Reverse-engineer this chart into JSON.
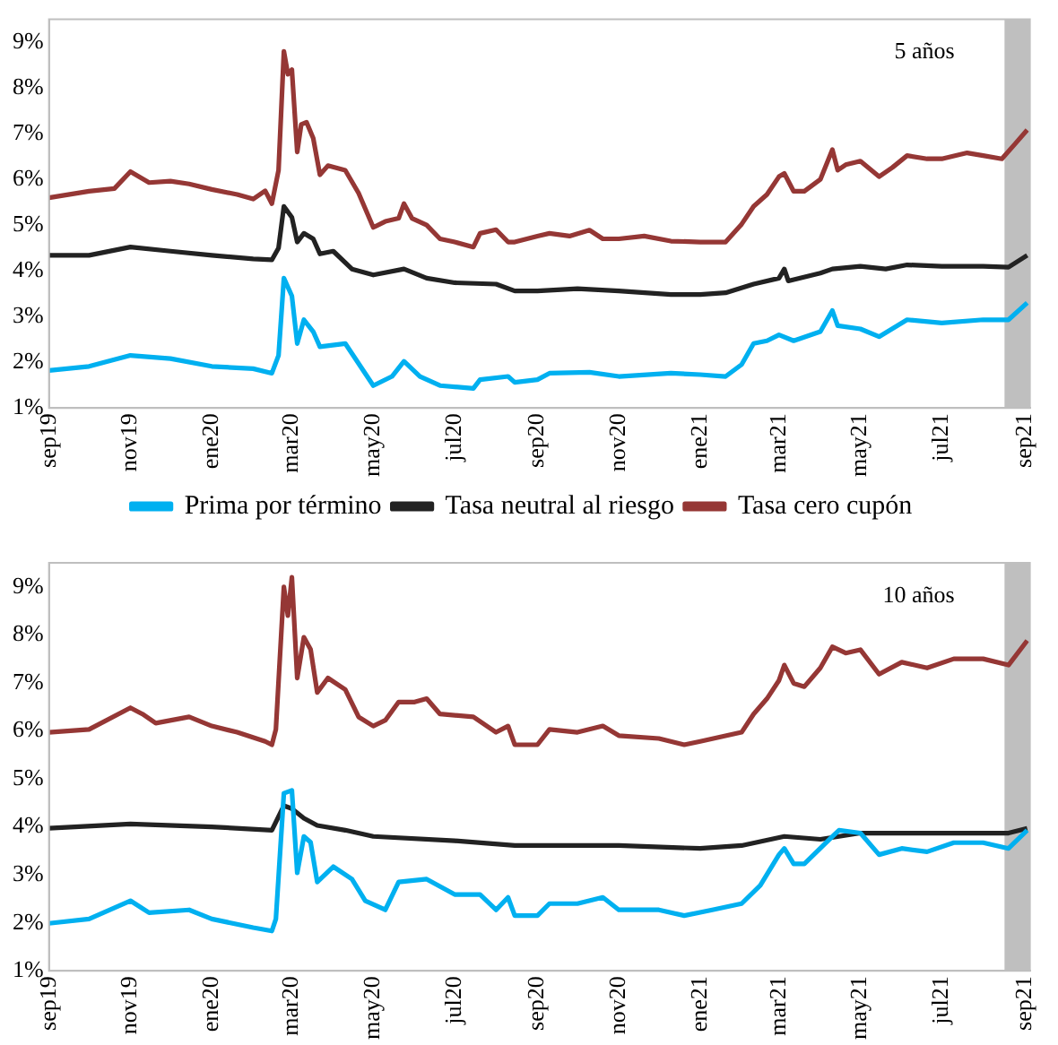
{
  "chart_data": [
    {
      "type": "line",
      "annotations": [
        "5 años"
      ],
      "legend": "bottom",
      "grid": false,
      "marker": "none",
      "line_style": "solid",
      "xlim": [
        "2019-09-01",
        "2021-09-05"
      ],
      "ylim": [
        1,
        9.5
      ],
      "yticks": [
        {
          "value": 1,
          "label": "1%"
        },
        {
          "value": 2,
          "label": "2%"
        },
        {
          "value": 3,
          "label": "3%"
        },
        {
          "value": 4,
          "label": "4%"
        },
        {
          "value": 5,
          "label": "5%"
        },
        {
          "value": 6,
          "label": "6%"
        },
        {
          "value": 7,
          "label": "7%"
        },
        {
          "value": 8,
          "label": "8%"
        },
        {
          "value": 9,
          "label": "9%"
        }
      ],
      "xticks": [
        {
          "value": "2019-09",
          "label": "sep19"
        },
        {
          "value": "2019-11",
          "label": "nov19"
        },
        {
          "value": "2020-01",
          "label": "ene20"
        },
        {
          "value": "2020-03",
          "label": "mar20"
        },
        {
          "value": "2020-05",
          "label": "may20"
        },
        {
          "value": "2020-07",
          "label": "jul20"
        },
        {
          "value": "2020-09",
          "label": "sep20"
        },
        {
          "value": "2020-11",
          "label": "nov20"
        },
        {
          "value": "2021-01",
          "label": "ene21"
        },
        {
          "value": "2021-03",
          "label": "mar21"
        },
        {
          "value": "2021-05",
          "label": "may21"
        },
        {
          "value": "2021-07",
          "label": "jul21"
        },
        {
          "value": "2021-09",
          "label": "sep21"
        }
      ],
      "bands": [
        {
          "axis": "x",
          "from": "2021-08-17",
          "to": "2021-09-05",
          "color": "#bfbfbf"
        }
      ],
      "series": [
        {
          "name": "Prima por término",
          "color": "#00b0f0",
          "x": [
            "2019-09-01",
            "2019-10-01",
            "2019-11-01",
            "2019-12-01",
            "2020-01-01",
            "2020-02-01",
            "2020-02-15",
            "2020-02-20",
            "2020-02-24",
            "2020-03-01",
            "2020-03-05",
            "2020-03-10",
            "2020-03-17",
            "2020-03-22",
            "2020-04-10",
            "2020-05-01",
            "2020-05-15",
            "2020-05-24",
            "2020-06-05",
            "2020-06-20",
            "2020-07-15",
            "2020-07-20",
            "2020-08-10",
            "2020-08-15",
            "2020-09-01",
            "2020-09-10",
            "2020-10-10",
            "2020-11-01",
            "2020-12-10",
            "2021-01-01",
            "2021-01-20",
            "2021-02-01",
            "2021-02-10",
            "2021-02-20",
            "2021-03-01",
            "2021-03-12",
            "2021-04-01",
            "2021-04-10",
            "2021-04-14",
            "2021-05-01",
            "2021-05-15",
            "2021-06-05",
            "2021-07-01",
            "2021-08-01",
            "2021-08-20",
            "2021-09-03"
          ],
          "values": [
            1.82,
            1.91,
            2.15,
            2.08,
            1.91,
            1.86,
            1.76,
            2.15,
            3.84,
            3.45,
            2.41,
            2.93,
            2.67,
            2.34,
            2.41,
            1.49,
            1.69,
            2.02,
            1.69,
            1.49,
            1.43,
            1.62,
            1.69,
            1.56,
            1.62,
            1.76,
            1.78,
            1.69,
            1.76,
            1.73,
            1.69,
            1.95,
            2.41,
            2.47,
            2.6,
            2.47,
            2.67,
            3.13,
            2.8,
            2.73,
            2.56,
            2.93,
            2.86,
            2.93,
            2.93,
            3.3
          ]
        },
        {
          "name": "Tasa neutral al riesgo",
          "color": "#222222",
          "x": [
            "2019-09-01",
            "2019-10-01",
            "2019-11-01",
            "2019-12-01",
            "2020-01-01",
            "2020-02-01",
            "2020-02-15",
            "2020-02-20",
            "2020-02-24",
            "2020-03-01",
            "2020-03-05",
            "2020-03-10",
            "2020-03-17",
            "2020-03-22",
            "2020-04-01",
            "2020-04-15",
            "2020-05-01",
            "2020-05-24",
            "2020-06-10",
            "2020-07-01",
            "2020-08-01",
            "2020-08-15",
            "2020-09-01",
            "2020-10-01",
            "2020-11-01",
            "2020-12-10",
            "2021-01-01",
            "2021-01-20",
            "2021-02-10",
            "2021-03-01",
            "2021-03-05",
            "2021-03-08",
            "2021-04-01",
            "2021-04-10",
            "2021-05-01",
            "2021-05-20",
            "2021-06-05",
            "2021-07-01",
            "2021-08-01",
            "2021-08-20",
            "2021-09-03"
          ],
          "values": [
            4.34,
            4.34,
            4.52,
            4.43,
            4.34,
            4.26,
            4.24,
            4.5,
            5.41,
            5.17,
            4.63,
            4.82,
            4.7,
            4.37,
            4.43,
            4.04,
            3.91,
            4.04,
            3.84,
            3.74,
            3.71,
            3.56,
            3.56,
            3.61,
            3.56,
            3.48,
            3.48,
            3.52,
            3.71,
            3.84,
            4.04,
            3.78,
            3.95,
            4.04,
            4.1,
            4.04,
            4.13,
            4.1,
            4.1,
            4.08,
            4.34
          ]
        },
        {
          "name": "Tasa cero cupón",
          "color": "#953735",
          "x": [
            "2019-09-01",
            "2019-10-01",
            "2019-10-20",
            "2019-11-01",
            "2019-11-15",
            "2019-12-01",
            "2019-12-15",
            "2020-01-01",
            "2020-01-20",
            "2020-02-01",
            "2020-02-10",
            "2020-02-15",
            "2020-02-20",
            "2020-02-24",
            "2020-02-27",
            "2020-03-01",
            "2020-03-05",
            "2020-03-08",
            "2020-03-12",
            "2020-03-17",
            "2020-03-22",
            "2020-03-28",
            "2020-04-10",
            "2020-04-20",
            "2020-05-01",
            "2020-05-10",
            "2020-05-20",
            "2020-05-24",
            "2020-05-30",
            "2020-06-10",
            "2020-06-20",
            "2020-07-01",
            "2020-07-15",
            "2020-07-20",
            "2020-08-01",
            "2020-08-10",
            "2020-08-15",
            "2020-09-01",
            "2020-09-10",
            "2020-09-25",
            "2020-10-10",
            "2020-10-20",
            "2020-11-01",
            "2020-11-20",
            "2020-12-10",
            "2021-01-01",
            "2021-01-20",
            "2021-02-01",
            "2021-02-10",
            "2021-02-20",
            "2021-03-01",
            "2021-03-05",
            "2021-03-12",
            "2021-03-20",
            "2021-04-01",
            "2021-04-10",
            "2021-04-14",
            "2021-04-20",
            "2021-05-01",
            "2021-05-15",
            "2021-05-25",
            "2021-06-05",
            "2021-06-20",
            "2021-07-01",
            "2021-07-20",
            "2021-08-01",
            "2021-08-15",
            "2021-08-25",
            "2021-09-03"
          ],
          "values": [
            5.6,
            5.74,
            5.8,
            6.17,
            5.93,
            5.96,
            5.9,
            5.78,
            5.67,
            5.57,
            5.75,
            5.47,
            6.2,
            8.8,
            8.3,
            8.4,
            6.6,
            7.2,
            7.25,
            6.9,
            6.1,
            6.3,
            6.2,
            5.7,
            4.95,
            5.08,
            5.15,
            5.47,
            5.15,
            5.0,
            4.7,
            4.63,
            4.52,
            4.82,
            4.9,
            4.63,
            4.63,
            4.76,
            4.82,
            4.76,
            4.89,
            4.7,
            4.7,
            4.76,
            4.65,
            4.63,
            4.63,
            5.02,
            5.41,
            5.67,
            6.06,
            6.13,
            5.74,
            5.74,
            6.0,
            6.65,
            6.2,
            6.32,
            6.4,
            6.06,
            6.26,
            6.52,
            6.45,
            6.45,
            6.58,
            6.52,
            6.45,
            6.78,
            7.08
          ]
        }
      ]
    },
    {
      "type": "line",
      "annotations": [
        "10 años"
      ],
      "grid": false,
      "marker": "none",
      "line_style": "solid",
      "xlim": [
        "2019-09-01",
        "2021-09-05"
      ],
      "ylim": [
        1,
        9.5
      ],
      "yticks": [
        {
          "value": 1,
          "label": "1%"
        },
        {
          "value": 2,
          "label": "2%"
        },
        {
          "value": 3,
          "label": "3%"
        },
        {
          "value": 4,
          "label": "4%"
        },
        {
          "value": 5,
          "label": "5%"
        },
        {
          "value": 6,
          "label": "6%"
        },
        {
          "value": 7,
          "label": "7%"
        },
        {
          "value": 8,
          "label": "8%"
        },
        {
          "value": 9,
          "label": "9%"
        }
      ],
      "xticks": [
        {
          "value": "2019-09",
          "label": "sep19"
        },
        {
          "value": "2019-11",
          "label": "nov19"
        },
        {
          "value": "2020-01",
          "label": "ene20"
        },
        {
          "value": "2020-03",
          "label": "mar20"
        },
        {
          "value": "2020-05",
          "label": "may20"
        },
        {
          "value": "2020-07",
          "label": "jul20"
        },
        {
          "value": "2020-09",
          "label": "sep20"
        },
        {
          "value": "2020-11",
          "label": "nov20"
        },
        {
          "value": "2021-01",
          "label": "ene21"
        },
        {
          "value": "2021-03",
          "label": "mar21"
        },
        {
          "value": "2021-05",
          "label": "may21"
        },
        {
          "value": "2021-07",
          "label": "jul21"
        },
        {
          "value": "2021-09",
          "label": "sep21"
        }
      ],
      "bands": [
        {
          "axis": "x",
          "from": "2021-08-17",
          "to": "2021-09-05",
          "color": "#bfbfbf"
        }
      ],
      "series": [
        {
          "color": "#00b0f0",
          "x": [
            "2019-09-01",
            "2019-10-01",
            "2019-11-01",
            "2019-11-15",
            "2019-12-15",
            "2020-01-01",
            "2020-02-01",
            "2020-02-15",
            "2020-02-18",
            "2020-02-24",
            "2020-03-01",
            "2020-03-05",
            "2020-03-10",
            "2020-03-15",
            "2020-03-20",
            "2020-04-01",
            "2020-04-15",
            "2020-04-25",
            "2020-05-10",
            "2020-05-20",
            "2020-06-10",
            "2020-07-01",
            "2020-07-20",
            "2020-08-01",
            "2020-08-10",
            "2020-08-15",
            "2020-09-01",
            "2020-09-10",
            "2020-10-01",
            "2020-10-20",
            "2020-11-01",
            "2020-12-01",
            "2020-12-20",
            "2021-01-10",
            "2021-02-01",
            "2021-02-15",
            "2021-03-01",
            "2021-03-05",
            "2021-03-12",
            "2021-03-20",
            "2021-04-10",
            "2021-04-15",
            "2021-05-01",
            "2021-05-15",
            "2021-06-01",
            "2021-06-20",
            "2021-07-10",
            "2021-08-01",
            "2021-08-20",
            "2021-09-03"
          ],
          "values": [
            1.99,
            2.08,
            2.46,
            2.21,
            2.27,
            2.08,
            1.9,
            1.83,
            2.08,
            4.7,
            4.76,
            3.04,
            3.8,
            3.68,
            2.85,
            3.17,
            2.91,
            2.46,
            2.27,
            2.85,
            2.91,
            2.59,
            2.59,
            2.27,
            2.53,
            2.15,
            2.15,
            2.4,
            2.4,
            2.53,
            2.27,
            2.27,
            2.15,
            2.27,
            2.4,
            2.78,
            3.42,
            3.55,
            3.23,
            3.23,
            3.8,
            3.93,
            3.87,
            3.42,
            3.55,
            3.48,
            3.67,
            3.67,
            3.55,
            3.93
          ]
        },
        {
          "color": "#222222",
          "x": [
            "2019-09-01",
            "2019-11-01",
            "2020-01-01",
            "2020-02-15",
            "2020-02-24",
            "2020-03-01",
            "2020-03-10",
            "2020-03-20",
            "2020-04-10",
            "2020-05-01",
            "2020-07-01",
            "2020-08-15",
            "2020-09-01",
            "2020-11-01",
            "2021-01-01",
            "2021-02-01",
            "2021-03-05",
            "2021-04-01",
            "2021-05-01",
            "2021-07-01",
            "2021-08-20",
            "2021-09-03"
          ],
          "values": [
            3.97,
            4.06,
            4.0,
            3.93,
            4.44,
            4.38,
            4.18,
            4.03,
            3.93,
            3.8,
            3.71,
            3.61,
            3.61,
            3.61,
            3.55,
            3.61,
            3.8,
            3.74,
            3.87,
            3.87,
            3.87,
            3.97
          ]
        },
        {
          "color": "#953735",
          "x": [
            "2019-09-01",
            "2019-10-01",
            "2019-11-01",
            "2019-11-10",
            "2019-11-20",
            "2019-12-15",
            "2020-01-01",
            "2020-01-20",
            "2020-02-10",
            "2020-02-15",
            "2020-02-18",
            "2020-02-24",
            "2020-02-27",
            "2020-03-01",
            "2020-03-05",
            "2020-03-10",
            "2020-03-15",
            "2020-03-20",
            "2020-03-28",
            "2020-04-10",
            "2020-04-20",
            "2020-05-01",
            "2020-05-10",
            "2020-05-20",
            "2020-06-01",
            "2020-06-10",
            "2020-06-20",
            "2020-07-15",
            "2020-08-01",
            "2020-08-10",
            "2020-08-15",
            "2020-09-01",
            "2020-09-10",
            "2020-10-01",
            "2020-10-20",
            "2020-11-01",
            "2020-12-01",
            "2020-12-20",
            "2021-01-01",
            "2021-02-01",
            "2021-02-10",
            "2021-02-20",
            "2021-03-01",
            "2021-03-05",
            "2021-03-12",
            "2021-03-20",
            "2021-04-01",
            "2021-04-10",
            "2021-04-20",
            "2021-05-01",
            "2021-05-15",
            "2021-06-01",
            "2021-06-20",
            "2021-07-10",
            "2021-08-01",
            "2021-08-20",
            "2021-09-03"
          ],
          "values": [
            5.97,
            6.03,
            6.48,
            6.35,
            6.16,
            6.29,
            6.1,
            5.97,
            5.78,
            5.71,
            6.03,
            9.0,
            8.4,
            9.2,
            7.1,
            7.95,
            7.7,
            6.8,
            7.1,
            6.86,
            6.29,
            6.1,
            6.22,
            6.6,
            6.6,
            6.67,
            6.35,
            6.29,
            5.97,
            6.1,
            5.71,
            5.71,
            6.03,
            5.97,
            6.1,
            5.9,
            5.84,
            5.71,
            5.78,
            5.97,
            6.35,
            6.67,
            7.05,
            7.37,
            6.99,
            6.92,
            7.31,
            7.75,
            7.62,
            7.69,
            7.18,
            7.43,
            7.31,
            7.5,
            7.5,
            7.37,
            7.88
          ]
        }
      ]
    }
  ]
}
